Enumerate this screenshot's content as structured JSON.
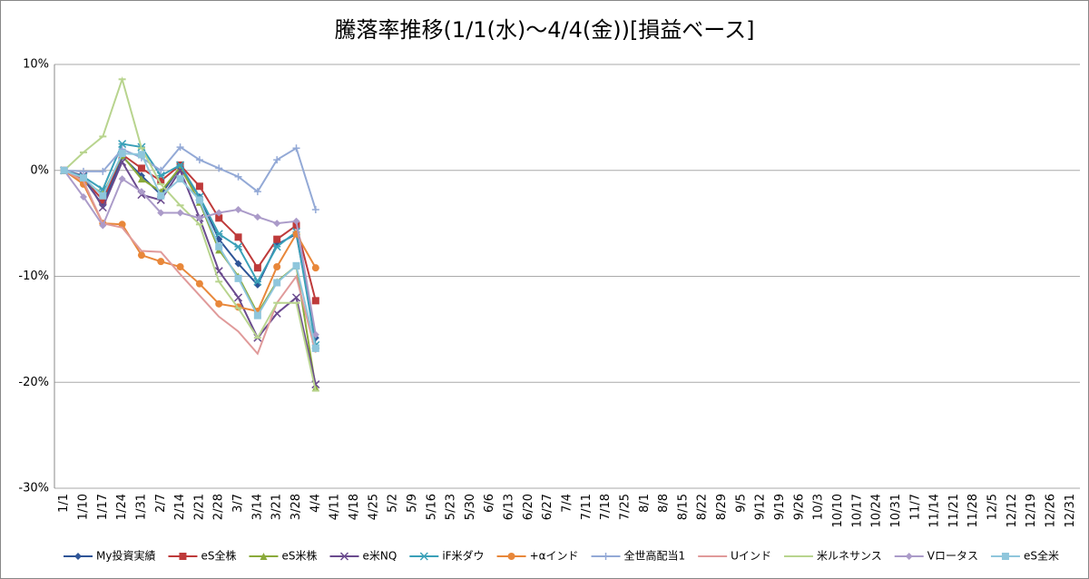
{
  "chart_data": {
    "type": "line",
    "title": "騰落率推移(1/1(水)～4/4(金))[損益ベース]",
    "categories": [
      "1/1",
      "1/10",
      "1/17",
      "1/24",
      "1/31",
      "2/7",
      "2/14",
      "2/21",
      "2/28",
      "3/7",
      "3/14",
      "3/21",
      "3/28",
      "4/4",
      "4/11",
      "4/18",
      "4/25",
      "5/2",
      "5/9",
      "5/16",
      "5/23",
      "5/30",
      "6/6",
      "6/13",
      "6/20",
      "6/27",
      "7/4",
      "7/11",
      "7/18",
      "7/25",
      "8/1",
      "8/8",
      "8/15",
      "8/22",
      "8/29",
      "9/5",
      "9/12",
      "9/19",
      "9/26",
      "10/3",
      "10/10",
      "10/17",
      "10/24",
      "10/31",
      "11/7",
      "11/14",
      "11/21",
      "11/28",
      "12/5",
      "12/12",
      "12/19",
      "12/26",
      "12/31"
    ],
    "ylim": [
      -30,
      10
    ],
    "yticks": [
      {
        "value": -30,
        "label": "-30%"
      },
      {
        "value": -20,
        "label": "-20%"
      },
      {
        "value": -10,
        "label": "-10%"
      },
      {
        "value": 0,
        "label": "0%"
      },
      {
        "value": 10,
        "label": "10%"
      }
    ],
    "grid": true,
    "legend": "bottom",
    "series": [
      {
        "name": "My投資実績",
        "color": "#2e5597",
        "marker": "diamond",
        "values": [
          0,
          -0.8,
          -3.3,
          1.3,
          -0.5,
          -2.3,
          0.3,
          -2.5,
          -6.5,
          -8.8,
          -10.8,
          -7.0,
          -6.0,
          -15.8,
          null,
          null,
          null,
          null,
          null,
          null,
          null,
          null,
          null,
          null,
          null,
          null,
          null,
          null,
          null,
          null,
          null,
          null,
          null,
          null,
          null,
          null,
          null,
          null,
          null,
          null,
          null,
          null,
          null,
          null,
          null,
          null,
          null,
          null,
          null,
          null,
          null,
          null,
          null
        ]
      },
      {
        "name": "eS全株",
        "color": "#be3a3a",
        "marker": "square",
        "values": [
          0,
          -0.8,
          -2.8,
          1.5,
          0.2,
          -1.0,
          0.5,
          -1.5,
          -4.5,
          -6.3,
          -9.2,
          -6.5,
          -5.2,
          -12.3,
          null,
          null,
          null,
          null,
          null,
          null,
          null,
          null,
          null,
          null,
          null,
          null,
          null,
          null,
          null,
          null,
          null,
          null,
          null,
          null,
          null,
          null,
          null,
          null,
          null,
          null,
          null,
          null,
          null,
          null,
          null,
          null,
          null,
          null,
          null,
          null,
          null,
          null,
          null
        ]
      },
      {
        "name": "eS米株",
        "color": "#8aaa3a",
        "marker": "triangle",
        "values": [
          0,
          -1.0,
          -2.2,
          1.4,
          -0.8,
          -2.0,
          0.3,
          -3.0,
          -7.5,
          -10.0,
          -13.5,
          -10.5,
          -9.0,
          -20.5,
          null,
          null,
          null,
          null,
          null,
          null,
          null,
          null,
          null,
          null,
          null,
          null,
          null,
          null,
          null,
          null,
          null,
          null,
          null,
          null,
          null,
          null,
          null,
          null,
          null,
          null,
          null,
          null,
          null,
          null,
          null,
          null,
          null,
          null,
          null,
          null,
          null,
          null,
          null
        ]
      },
      {
        "name": "e米NQ",
        "color": "#6a4a8e",
        "marker": "x",
        "values": [
          0,
          -0.5,
          -3.5,
          0.8,
          -2.3,
          -2.8,
          0.0,
          -4.5,
          -9.5,
          -12.0,
          -15.8,
          -13.5,
          -12.0,
          -20.2,
          null,
          null,
          null,
          null,
          null,
          null,
          null,
          null,
          null,
          null,
          null,
          null,
          null,
          null,
          null,
          null,
          null,
          null,
          null,
          null,
          null,
          null,
          null,
          null,
          null,
          null,
          null,
          null,
          null,
          null,
          null,
          null,
          null,
          null,
          null,
          null,
          null,
          null,
          null
        ]
      },
      {
        "name": "iF米ダウ",
        "color": "#3aa0b8",
        "marker": "star",
        "values": [
          0,
          -0.6,
          -1.8,
          2.5,
          2.2,
          -0.5,
          0.5,
          -2.5,
          -6.0,
          -7.2,
          -10.5,
          -7.2,
          -5.8,
          -16.5,
          null,
          null,
          null,
          null,
          null,
          null,
          null,
          null,
          null,
          null,
          null,
          null,
          null,
          null,
          null,
          null,
          null,
          null,
          null,
          null,
          null,
          null,
          null,
          null,
          null,
          null,
          null,
          null,
          null,
          null,
          null,
          null,
          null,
          null,
          null,
          null,
          null,
          null,
          null
        ]
      },
      {
        "name": "+αインド",
        "color": "#e8873a",
        "marker": "circle",
        "values": [
          0,
          -1.3,
          -5.0,
          -5.1,
          -8.0,
          -8.6,
          -9.1,
          -10.7,
          -12.6,
          -12.9,
          -13.3,
          -9.1,
          -6.0,
          -9.2,
          null,
          null,
          null,
          null,
          null,
          null,
          null,
          null,
          null,
          null,
          null,
          null,
          null,
          null,
          null,
          null,
          null,
          null,
          null,
          null,
          null,
          null,
          null,
          null,
          null,
          null,
          null,
          null,
          null,
          null,
          null,
          null,
          null,
          null,
          null,
          null,
          null,
          null,
          null
        ]
      },
      {
        "name": "全世高配当1",
        "color": "#93a9d6",
        "marker": "plus",
        "values": [
          0,
          -0.1,
          -0.1,
          2.0,
          1.2,
          0.0,
          2.2,
          1.0,
          0.2,
          -0.6,
          -2.0,
          1.0,
          2.1,
          -3.7,
          null,
          null,
          null,
          null,
          null,
          null,
          null,
          null,
          null,
          null,
          null,
          null,
          null,
          null,
          null,
          null,
          null,
          null,
          null,
          null,
          null,
          null,
          null,
          null,
          null,
          null,
          null,
          null,
          null,
          null,
          null,
          null,
          null,
          null,
          null,
          null,
          null,
          null,
          null
        ]
      },
      {
        "name": "Uインド",
        "color": "#e09a9a",
        "marker": "none",
        "values": [
          0,
          -1.0,
          -5.0,
          -5.4,
          -7.6,
          -7.7,
          -9.8,
          -11.8,
          -13.8,
          -15.2,
          -17.3,
          -12.5,
          -10.0,
          -17.2,
          null,
          null,
          null,
          null,
          null,
          null,
          null,
          null,
          null,
          null,
          null,
          null,
          null,
          null,
          null,
          null,
          null,
          null,
          null,
          null,
          null,
          null,
          null,
          null,
          null,
          null,
          null,
          null,
          null,
          null,
          null,
          null,
          null,
          null,
          null,
          null,
          null,
          null,
          null
        ]
      },
      {
        "name": "米ルネサンス",
        "color": "#b8d48e",
        "marker": "dash",
        "values": [
          0,
          1.7,
          3.2,
          8.6,
          2.1,
          -1.3,
          -3.3,
          -5.1,
          -10.5,
          -13.0,
          -15.8,
          -12.5,
          -12.5,
          -20.8,
          null,
          null,
          null,
          null,
          null,
          null,
          null,
          null,
          null,
          null,
          null,
          null,
          null,
          null,
          null,
          null,
          null,
          null,
          null,
          null,
          null,
          null,
          null,
          null,
          null,
          null,
          null,
          null,
          null,
          null,
          null,
          null,
          null,
          null,
          null,
          null,
          null,
          null,
          null
        ]
      },
      {
        "name": "Vロータス",
        "color": "#ab9bc9",
        "marker": "diamond",
        "values": [
          0,
          -2.5,
          -5.2,
          -0.8,
          -2.0,
          -4.0,
          -4.0,
          -4.5,
          -4.0,
          -3.7,
          -4.4,
          -5.0,
          -4.8,
          -15.5,
          null,
          null,
          null,
          null,
          null,
          null,
          null,
          null,
          null,
          null,
          null,
          null,
          null,
          null,
          null,
          null,
          null,
          null,
          null,
          null,
          null,
          null,
          null,
          null,
          null,
          null,
          null,
          null,
          null,
          null,
          null,
          null,
          null,
          null,
          null,
          null,
          null,
          null,
          null
        ]
      },
      {
        "name": "eS全米",
        "color": "#8fc6dc",
        "marker": "square",
        "values": [
          0,
          -0.7,
          -2.4,
          1.6,
          1.5,
          -2.4,
          -0.8,
          -2.8,
          -7.2,
          -10.2,
          -13.7,
          -10.6,
          -9.0,
          -16.8,
          null,
          null,
          null,
          null,
          null,
          null,
          null,
          null,
          null,
          null,
          null,
          null,
          null,
          null,
          null,
          null,
          null,
          null,
          null,
          null,
          null,
          null,
          null,
          null,
          null,
          null,
          null,
          null,
          null,
          null,
          null,
          null,
          null,
          null,
          null,
          null,
          null,
          null,
          null
        ]
      }
    ]
  }
}
